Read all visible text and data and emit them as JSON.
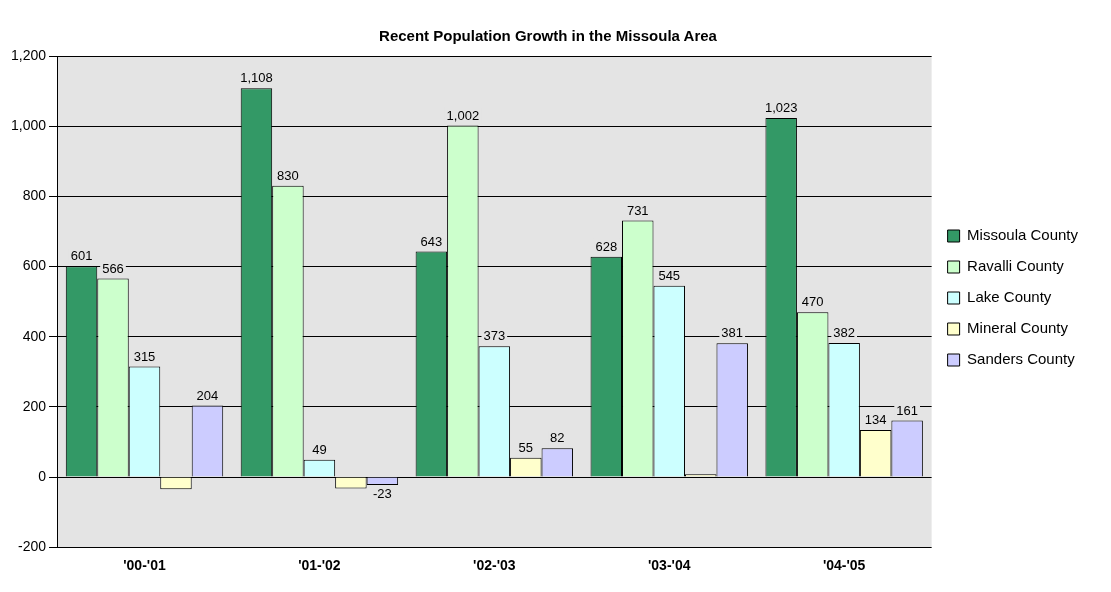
{
  "chart_data": {
    "type": "bar",
    "title": "Recent Population Growth in the Missoula Area",
    "categories": [
      "'00-'01",
      "'01-'02",
      "'02-'03",
      "'03-'04",
      "'04-'05"
    ],
    "series": [
      {
        "name": "Missoula County",
        "color": "#339966",
        "values": [
          601,
          1108,
          643,
          628,
          1023
        ],
        "value_labels": [
          "601",
          "1,108",
          "643",
          "628",
          "1,023"
        ]
      },
      {
        "name": "Ravalli County",
        "color": "#ccffcc",
        "values": [
          566,
          830,
          1002,
          731,
          470
        ],
        "value_labels": [
          "566",
          "830",
          "1,002",
          "731",
          "470"
        ]
      },
      {
        "name": "Lake County",
        "color": "#ccffff",
        "values": [
          315,
          49,
          373,
          545,
          382
        ],
        "value_labels": [
          "315",
          "49",
          "373",
          "545",
          "382"
        ]
      },
      {
        "name": "Mineral County",
        "color": "#ffffcc",
        "values": [
          -35,
          -33,
          55,
          8,
          134
        ],
        "value_labels": [
          null,
          null,
          "55",
          null,
          "134"
        ]
      },
      {
        "name": "Sanders County",
        "color": "#ccccff",
        "values": [
          204,
          -23,
          82,
          381,
          161
        ],
        "value_labels": [
          "204",
          "-23",
          "82",
          "381",
          "161"
        ]
      }
    ],
    "ylim": [
      -200,
      1200
    ],
    "yticks": [
      -200,
      0,
      200,
      400,
      600,
      800,
      {
        "value": 1000,
        "label": "1,000"
      },
      {
        "value": 1200,
        "label": "1,200"
      }
    ],
    "grid": "y",
    "legend": "right"
  }
}
